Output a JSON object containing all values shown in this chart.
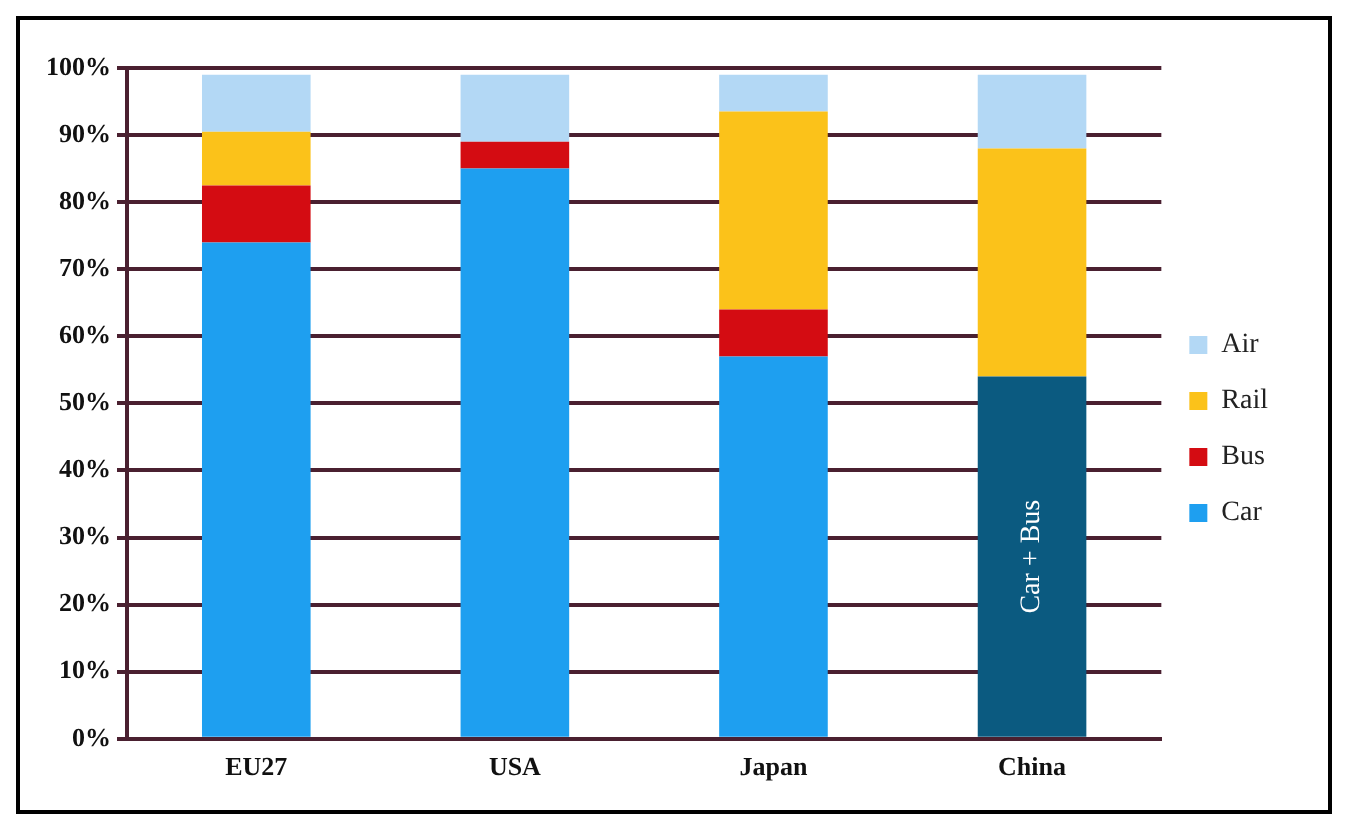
{
  "chart_data": {
    "type": "bar",
    "stacked": true,
    "categories": [
      "EU27",
      "USA",
      "Japan",
      "China"
    ],
    "series": [
      {
        "name": "Car",
        "color": "#1e9ff0",
        "colors": [
          "#1e9ff0",
          "#1e9ff0",
          "#1e9ff0",
          "#0b5a80"
        ],
        "values": [
          74,
          85,
          57,
          54
        ]
      },
      {
        "name": "Bus",
        "color": "#d40c12",
        "values": [
          8.5,
          4,
          7,
          0
        ]
      },
      {
        "name": "Rail",
        "color": "#fbc21a",
        "values": [
          8,
          0,
          29.5,
          34
        ]
      },
      {
        "name": "Air",
        "color": "#b3d8f5",
        "values": [
          8.5,
          10,
          5.5,
          11
        ]
      }
    ],
    "ylim": [
      0,
      100
    ],
    "yticks": [
      {
        "value": 0,
        "label": "0%"
      },
      {
        "value": 10,
        "label": "10%"
      },
      {
        "value": 20,
        "label": "20%"
      },
      {
        "value": 30,
        "label": "30%"
      },
      {
        "value": 40,
        "label": "40%"
      },
      {
        "value": 50,
        "label": "50%"
      },
      {
        "value": 60,
        "label": "60%"
      },
      {
        "value": 70,
        "label": "70%"
      },
      {
        "value": 80,
        "label": "80%"
      },
      {
        "value": 90,
        "label": "90%"
      },
      {
        "value": 100,
        "label": "100%"
      }
    ],
    "grid": "y",
    "legend": "right",
    "annotations": [
      "Car + Bus"
    ]
  }
}
